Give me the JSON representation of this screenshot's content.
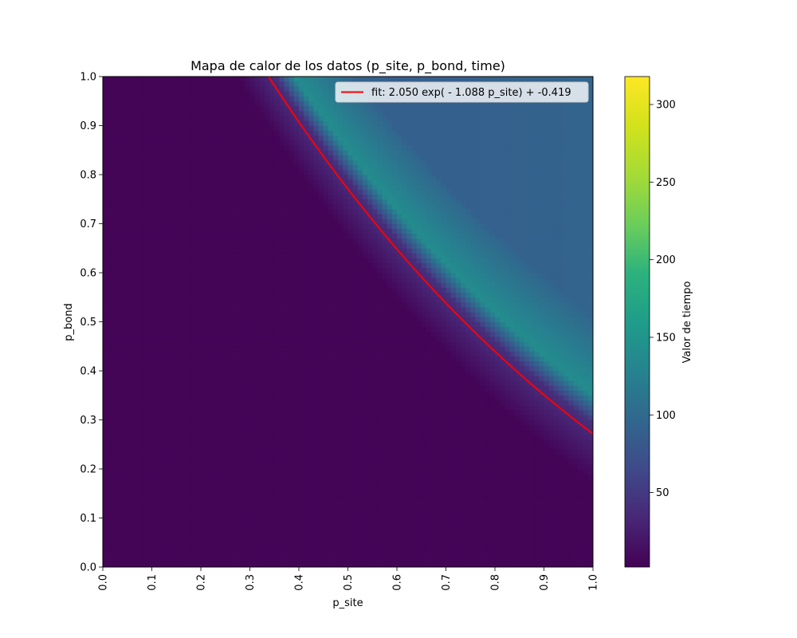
{
  "chart_data": {
    "type": "heatmap",
    "title": "Mapa de calor de los datos (p_site, p_bond, time)",
    "xlabel": "p_site",
    "ylabel": "p_bond",
    "xlim": [
      0.0,
      1.0
    ],
    "ylim": [
      0.0,
      1.0
    ],
    "x_ticks": [
      "0.0",
      "0.1",
      "0.2",
      "0.3",
      "0.4",
      "0.5",
      "0.6",
      "0.7",
      "0.8",
      "0.9",
      "1.0"
    ],
    "y_ticks": [
      "0.0",
      "0.1",
      "0.2",
      "0.3",
      "0.4",
      "0.5",
      "0.6",
      "0.7",
      "0.8",
      "0.9",
      "1.0"
    ],
    "grid": false,
    "colormap": "viridis",
    "colorbar": {
      "label": "Valor de tiempo",
      "range": [
        2,
        318
      ],
      "ticks": [
        "50",
        "100",
        "150",
        "200",
        "250",
        "300"
      ]
    },
    "heatmap_regions": [
      {
        "region": "below threshold",
        "approx_value": 5
      },
      {
        "region": "near threshold band",
        "approx_value": 140
      },
      {
        "region": "far above threshold",
        "approx_value": 95
      }
    ],
    "fit_line": {
      "name": "fit: 2.050 exp( - 1.088 p_site) + -0.419",
      "a": 2.05,
      "b": 1.088,
      "c": -0.419,
      "color": "#ff0000"
    },
    "legend_position": "top-right"
  }
}
